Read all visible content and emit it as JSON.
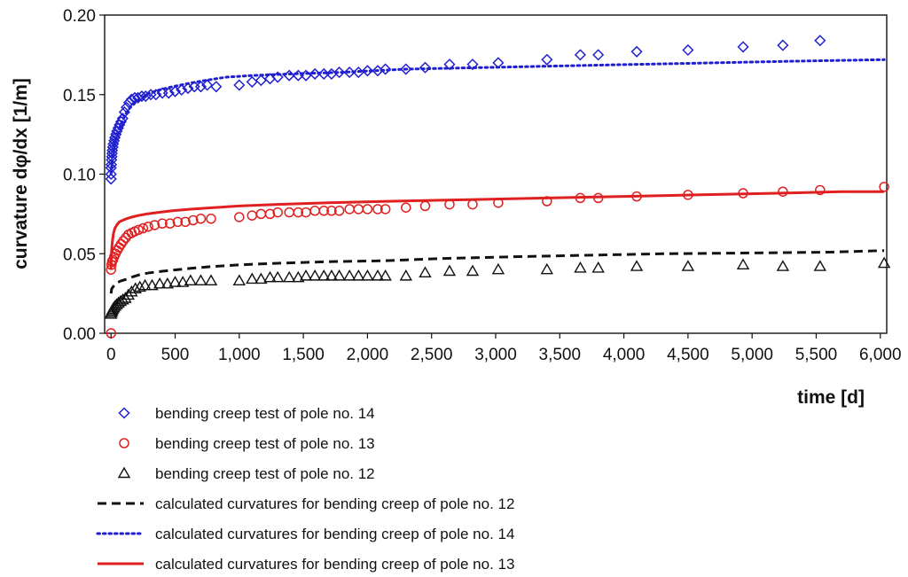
{
  "chart_data": {
    "type": "scatter",
    "title": "",
    "xlabel": "time [d]",
    "ylabel": "curvature dφ/dx [1/m]",
    "xlim": [
      -50,
      6050
    ],
    "ylim": [
      0,
      0.2
    ],
    "xticks": [
      0,
      500,
      1000,
      1500,
      2000,
      2500,
      3000,
      3500,
      4000,
      4500,
      5000,
      5500,
      6000
    ],
    "xtick_labels": [
      "0",
      "500",
      "1,000",
      "1,500",
      "2,000",
      "2,500",
      "3,000",
      "3,500",
      "4,000",
      "4,500",
      "5,000",
      "5,500",
      "6,000"
    ],
    "yticks": [
      0,
      0.05,
      0.1,
      0.15,
      0.2
    ],
    "ytick_labels": [
      "0.00",
      "0.05",
      "0.10",
      "0.15",
      "0.20"
    ],
    "grid": false,
    "legend_position": "bottom",
    "series": [
      {
        "name": "bending creep test of pole no. 14",
        "kind": "scatter",
        "marker": "diamond",
        "color": "#1f1fd0",
        "x": [
          0,
          0,
          0,
          2,
          4,
          6,
          8,
          10,
          14,
          18,
          24,
          30,
          38,
          46,
          56,
          66,
          78,
          90,
          105,
          120,
          140,
          160,
          185,
          210,
          240,
          270,
          310,
          350,
          400,
          450,
          500,
          550,
          600,
          650,
          700,
          750,
          820,
          1000,
          1100,
          1170,
          1240,
          1300,
          1390,
          1460,
          1520,
          1590,
          1660,
          1720,
          1780,
          1860,
          1930,
          2000,
          2080,
          2140,
          2300,
          2450,
          2640,
          2820,
          3020,
          3400,
          3660,
          3800,
          4100,
          4500,
          4930,
          5240,
          5530
        ],
        "y": [
          0.097,
          0.1,
          0.104,
          0.106,
          0.109,
          0.111,
          0.113,
          0.115,
          0.117,
          0.119,
          0.121,
          0.123,
          0.125,
          0.127,
          0.129,
          0.131,
          0.133,
          0.135,
          0.139,
          0.142,
          0.145,
          0.147,
          0.148,
          0.148,
          0.149,
          0.149,
          0.15,
          0.15,
          0.151,
          0.151,
          0.152,
          0.153,
          0.154,
          0.155,
          0.155,
          0.156,
          0.155,
          0.156,
          0.158,
          0.159,
          0.16,
          0.161,
          0.162,
          0.162,
          0.162,
          0.163,
          0.163,
          0.163,
          0.164,
          0.164,
          0.164,
          0.165,
          0.165,
          0.166,
          0.166,
          0.167,
          0.169,
          0.169,
          0.17,
          0.172,
          0.175,
          0.175,
          0.177,
          0.178,
          0.18,
          0.181,
          0.184
        ]
      },
      {
        "name": "bending creep test of pole no. 13",
        "kind": "scatter",
        "marker": "circle",
        "color": "#e02020",
        "x": [
          0,
          0,
          3,
          8,
          15,
          24,
          35,
          48,
          62,
          78,
          95,
          115,
          135,
          160,
          185,
          215,
          250,
          290,
          340,
          400,
          460,
          520,
          580,
          640,
          700,
          780,
          1000,
          1100,
          1170,
          1240,
          1300,
          1390,
          1460,
          1520,
          1590,
          1660,
          1720,
          1780,
          1860,
          1930,
          2000,
          2080,
          2140,
          2300,
          2450,
          2640,
          2820,
          3020,
          3400,
          3660,
          3800,
          4100,
          4500,
          4930,
          5240,
          5530,
          6030
        ],
        "y": [
          0.0,
          0.04,
          0.043,
          0.045,
          0.046,
          0.048,
          0.05,
          0.052,
          0.054,
          0.056,
          0.058,
          0.06,
          0.062,
          0.063,
          0.064,
          0.065,
          0.066,
          0.067,
          0.068,
          0.069,
          0.069,
          0.07,
          0.07,
          0.071,
          0.072,
          0.072,
          0.073,
          0.074,
          0.075,
          0.075,
          0.076,
          0.076,
          0.076,
          0.076,
          0.077,
          0.077,
          0.077,
          0.077,
          0.078,
          0.078,
          0.078,
          0.078,
          0.078,
          0.079,
          0.08,
          0.081,
          0.081,
          0.082,
          0.083,
          0.085,
          0.085,
          0.086,
          0.087,
          0.088,
          0.089,
          0.09,
          0.092
        ]
      },
      {
        "name": "bending creep test of pole no. 12",
        "kind": "scatter",
        "marker": "triangle",
        "color": "#111111",
        "x": [
          0,
          3,
          8,
          14,
          22,
          32,
          44,
          58,
          74,
          92,
          112,
          135,
          160,
          190,
          225,
          265,
          320,
          380,
          440,
          500,
          560,
          620,
          700,
          780,
          1000,
          1100,
          1170,
          1240,
          1300,
          1390,
          1460,
          1520,
          1590,
          1660,
          1720,
          1780,
          1860,
          1930,
          2000,
          2080,
          2140,
          2300,
          2450,
          2640,
          2820,
          3020,
          3400,
          3660,
          3800,
          4100,
          4500,
          4930,
          5240,
          5530,
          6030
        ],
        "y": [
          0.012,
          0.013,
          0.014,
          0.015,
          0.016,
          0.017,
          0.018,
          0.019,
          0.02,
          0.021,
          0.022,
          0.024,
          0.026,
          0.028,
          0.029,
          0.03,
          0.03,
          0.031,
          0.031,
          0.032,
          0.032,
          0.033,
          0.033,
          0.033,
          0.033,
          0.034,
          0.034,
          0.035,
          0.035,
          0.035,
          0.035,
          0.036,
          0.036,
          0.036,
          0.036,
          0.036,
          0.036,
          0.036,
          0.036,
          0.036,
          0.036,
          0.036,
          0.038,
          0.039,
          0.039,
          0.04,
          0.04,
          0.041,
          0.041,
          0.042,
          0.042,
          0.043,
          0.042,
          0.042,
          0.044
        ]
      },
      {
        "name": "calculated curvatures for bending creep of pole no. 12",
        "kind": "line",
        "style": "dashed",
        "color": "#111111",
        "x": [
          0,
          5,
          15,
          30,
          50,
          80,
          120,
          170,
          230,
          300,
          400,
          520,
          650,
          800,
          1000,
          1300,
          1700,
          2100,
          2600,
          3100,
          3700,
          4300,
          5000,
          5600,
          6030
        ],
        "y": [
          0.025,
          0.028,
          0.029,
          0.031,
          0.032,
          0.033,
          0.034,
          0.0355,
          0.037,
          0.038,
          0.039,
          0.04,
          0.041,
          0.042,
          0.043,
          0.044,
          0.045,
          0.0455,
          0.047,
          0.048,
          0.049,
          0.05,
          0.0505,
          0.051,
          0.052
        ]
      },
      {
        "name": "calculated curvatures for bending creep of pole no. 14",
        "kind": "line",
        "style": "dotted",
        "color": "#1f1fd0",
        "x": [
          0,
          3,
          8,
          15,
          25,
          40,
          60,
          85,
          115,
          150,
          190,
          240,
          300,
          380,
          480,
          600,
          740,
          900,
          1100,
          1400,
          1800,
          2300,
          2900,
          3500,
          4100,
          4700,
          5300,
          6030
        ],
        "y": [
          0.1,
          0.103,
          0.108,
          0.113,
          0.118,
          0.123,
          0.128,
          0.133,
          0.138,
          0.142,
          0.145,
          0.148,
          0.151,
          0.153,
          0.155,
          0.157,
          0.159,
          0.161,
          0.162,
          0.163,
          0.164,
          0.166,
          0.167,
          0.168,
          0.169,
          0.17,
          0.171,
          0.172
        ]
      },
      {
        "name": "calculated curvatures for bending creep of pole no. 13",
        "kind": "line",
        "style": "solid",
        "color": "#e02020",
        "x": [
          0,
          2,
          6,
          12,
          20,
          30,
          45,
          65,
          90,
          120,
          160,
          210,
          280,
          370,
          480,
          620,
          800,
          1000,
          1300,
          1700,
          2200,
          2800,
          3400,
          4000,
          4600,
          5200,
          5700,
          6030
        ],
        "y": [
          0.04,
          0.048,
          0.054,
          0.059,
          0.063,
          0.066,
          0.068,
          0.07,
          0.071,
          0.072,
          0.073,
          0.074,
          0.075,
          0.076,
          0.077,
          0.078,
          0.079,
          0.08,
          0.081,
          0.082,
          0.083,
          0.084,
          0.085,
          0.086,
          0.087,
          0.088,
          0.089,
          0.089
        ]
      }
    ],
    "legend_order": [
      0,
      1,
      2,
      3,
      4,
      5
    ]
  }
}
